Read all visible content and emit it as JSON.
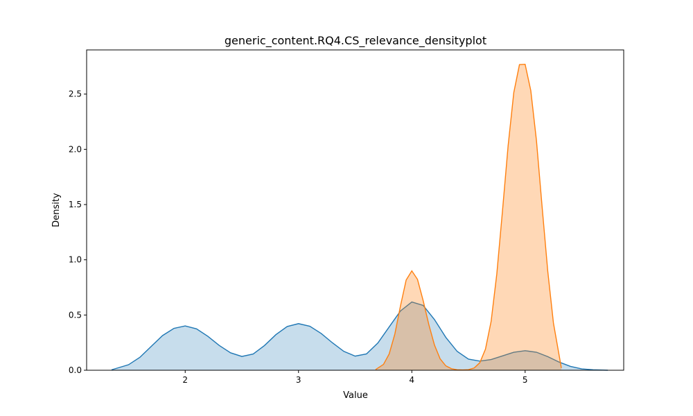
{
  "chart_data": {
    "type": "area",
    "title": "generic_content.RQ4.CS_relevance_densityplot",
    "xlabel": "Value",
    "ylabel": "Density",
    "xlim": [
      1.13,
      5.87
    ],
    "ylim": [
      0.0,
      2.9
    ],
    "xticks": [
      2,
      3,
      4,
      5
    ],
    "yticks": [
      0.0,
      0.5,
      1.0,
      1.5,
      2.0,
      2.5
    ],
    "grid": false,
    "legend": "none",
    "series": [
      {
        "color": "#1f77b4",
        "fill_opacity": 0.25,
        "x": [
          1.35,
          1.5,
          1.6,
          1.7,
          1.8,
          1.9,
          2.0,
          2.1,
          2.2,
          2.3,
          2.4,
          2.5,
          2.6,
          2.7,
          2.8,
          2.9,
          3.0,
          3.1,
          3.2,
          3.3,
          3.4,
          3.5,
          3.6,
          3.7,
          3.8,
          3.9,
          4.0,
          4.1,
          4.2,
          4.3,
          4.4,
          4.5,
          4.6,
          4.7,
          4.8,
          4.9,
          5.0,
          5.1,
          5.2,
          5.3,
          5.4,
          5.5,
          5.6,
          5.73
        ],
        "y": [
          0.004,
          0.05,
          0.117,
          0.216,
          0.314,
          0.379,
          0.401,
          0.375,
          0.307,
          0.225,
          0.158,
          0.125,
          0.147,
          0.224,
          0.322,
          0.396,
          0.422,
          0.398,
          0.333,
          0.248,
          0.171,
          0.128,
          0.148,
          0.246,
          0.392,
          0.537,
          0.618,
          0.587,
          0.459,
          0.298,
          0.171,
          0.101,
          0.083,
          0.097,
          0.13,
          0.163,
          0.177,
          0.163,
          0.123,
          0.074,
          0.035,
          0.012,
          0.004,
          0.0
        ]
      },
      {
        "color": "#ff7f0e",
        "fill_opacity": 0.3,
        "x": [
          3.68,
          3.75,
          3.8,
          3.85,
          3.9,
          3.95,
          4.0,
          4.05,
          4.1,
          4.15,
          4.2,
          4.25,
          4.3,
          4.35,
          4.4,
          4.45,
          4.5,
          4.55,
          4.6,
          4.65,
          4.7,
          4.75,
          4.8,
          4.85,
          4.9,
          4.95,
          5.0,
          5.05,
          5.1,
          5.15,
          5.2,
          5.25,
          5.32
        ],
        "y": [
          0.006,
          0.053,
          0.147,
          0.327,
          0.583,
          0.817,
          0.9,
          0.823,
          0.631,
          0.414,
          0.228,
          0.103,
          0.04,
          0.014,
          0.004,
          0.003,
          0.005,
          0.02,
          0.068,
          0.191,
          0.443,
          0.871,
          1.44,
          2.033,
          2.514,
          2.767,
          2.77,
          2.532,
          2.08,
          1.479,
          0.895,
          0.427,
          0.02
        ]
      }
    ]
  }
}
